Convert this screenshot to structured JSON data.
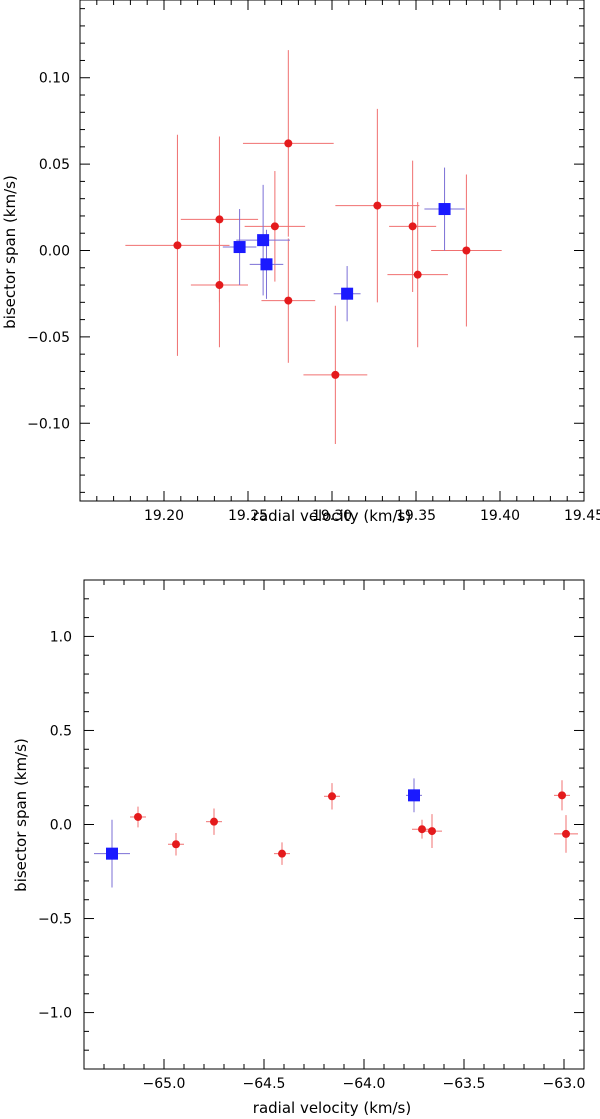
{
  "chart_data": [
    {
      "type": "scatter",
      "title": "",
      "xlabel": "radial velocity (km/s)",
      "ylabel": "bisector span (km/s)",
      "xlim": [
        19.15,
        19.45
      ],
      "ylim": [
        -0.145,
        0.145
      ],
      "xticks": [
        19.2,
        19.25,
        19.3,
        19.35,
        19.4,
        19.45
      ],
      "xtick_labels": [
        "19.20",
        "19.25",
        "19.30",
        "19.35",
        "19.40",
        "19.45"
      ],
      "yticks": [
        -0.1,
        -0.05,
        0.0,
        0.05,
        0.1
      ],
      "ytick_labels": [
        "−0.10",
        "−0.05",
        "0.00",
        "0.05",
        "0.10"
      ],
      "x_minor_step": 0.01,
      "y_minor_step": 0.01,
      "series": [
        {
          "name": "red circles",
          "marker": "circle",
          "color": "#e41a1c",
          "err_color": "#f07070",
          "points": [
            {
              "x": 19.208,
              "y": 0.003,
              "xerr": 0.031,
              "yerr": 0.064
            },
            {
              "x": 19.233,
              "y": 0.018,
              "xerr": 0.023,
              "yerr": 0.048
            },
            {
              "x": 19.233,
              "y": -0.02,
              "xerr": 0.017,
              "yerr": 0.036
            },
            {
              "x": 19.266,
              "y": 0.014,
              "xerr": 0.018,
              "yerr": 0.032
            },
            {
              "x": 19.274,
              "y": 0.062,
              "xerr": 0.027,
              "yerr": 0.054
            },
            {
              "x": 19.274,
              "y": -0.029,
              "xerr": 0.016,
              "yerr": 0.036
            },
            {
              "x": 19.302,
              "y": -0.072,
              "xerr": 0.019,
              "yerr": 0.04
            },
            {
              "x": 19.327,
              "y": 0.026,
              "xerr": 0.025,
              "yerr": 0.056
            },
            {
              "x": 19.348,
              "y": 0.014,
              "xerr": 0.014,
              "yerr": 0.038
            },
            {
              "x": 19.351,
              "y": -0.014,
              "xerr": 0.018,
              "yerr": 0.042
            },
            {
              "x": 19.38,
              "y": 0.0,
              "xerr": 0.021,
              "yerr": 0.044
            }
          ]
        },
        {
          "name": "blue squares",
          "marker": "square",
          "color": "#1a1aff",
          "err_color": "#7b6fd6",
          "points": [
            {
              "x": 19.245,
              "y": 0.002,
              "xerr": 0.01,
              "yerr": 0.022
            },
            {
              "x": 19.259,
              "y": 0.006,
              "xerr": 0.016,
              "yerr": 0.032
            },
            {
              "x": 19.261,
              "y": -0.008,
              "xerr": 0.01,
              "yerr": 0.02
            },
            {
              "x": 19.309,
              "y": -0.025,
              "xerr": 0.008,
              "yerr": 0.016
            },
            {
              "x": 19.367,
              "y": 0.024,
              "xerr": 0.012,
              "yerr": 0.024
            }
          ]
        }
      ]
    },
    {
      "type": "scatter",
      "title": "",
      "xlabel": "radial velocity (km/s)",
      "ylabel": "bisector span (km/s)",
      "xlim": [
        -65.4,
        -62.9
      ],
      "ylim": [
        -1.3,
        1.3
      ],
      "xticks": [
        -65.0,
        -64.5,
        -64.0,
        -63.5,
        -63.0
      ],
      "xtick_labels": [
        "−65.0",
        "−64.5",
        "−64.0",
        "−63.5",
        "−63.0"
      ],
      "yticks": [
        -1.0,
        -0.5,
        0.0,
        0.5,
        1.0
      ],
      "ytick_labels": [
        "−1.0",
        "−0.5",
        "0.0",
        "0.5",
        "1.0"
      ],
      "x_minor_step": 0.1,
      "y_minor_step": 0.1,
      "series": [
        {
          "name": "red circles",
          "marker": "circle",
          "color": "#e41a1c",
          "err_color": "#f07070",
          "points": [
            {
              "x": -65.13,
              "y": 0.04,
              "xerr": 0.04,
              "yerr": 0.055
            },
            {
              "x": -64.94,
              "y": -0.105,
              "xerr": 0.04,
              "yerr": 0.06
            },
            {
              "x": -64.75,
              "y": 0.015,
              "xerr": 0.04,
              "yerr": 0.07
            },
            {
              "x": -64.41,
              "y": -0.155,
              "xerr": 0.04,
              "yerr": 0.06
            },
            {
              "x": -64.16,
              "y": 0.15,
              "xerr": 0.04,
              "yerr": 0.07
            },
            {
              "x": -63.71,
              "y": -0.025,
              "xerr": 0.05,
              "yerr": 0.05
            },
            {
              "x": -63.66,
              "y": -0.035,
              "xerr": 0.05,
              "yerr": 0.09
            },
            {
              "x": -63.01,
              "y": 0.155,
              "xerr": 0.04,
              "yerr": 0.08
            },
            {
              "x": -62.99,
              "y": -0.05,
              "xerr": 0.06,
              "yerr": 0.1
            }
          ]
        },
        {
          "name": "blue squares",
          "marker": "square",
          "color": "#1a1aff",
          "err_color": "#7b6fd6",
          "points": [
            {
              "x": -65.26,
              "y": -0.155,
              "xerr": 0.09,
              "yerr": 0.18
            },
            {
              "x": -63.75,
              "y": 0.155,
              "xerr": 0.04,
              "yerr": 0.09
            }
          ]
        }
      ]
    }
  ]
}
